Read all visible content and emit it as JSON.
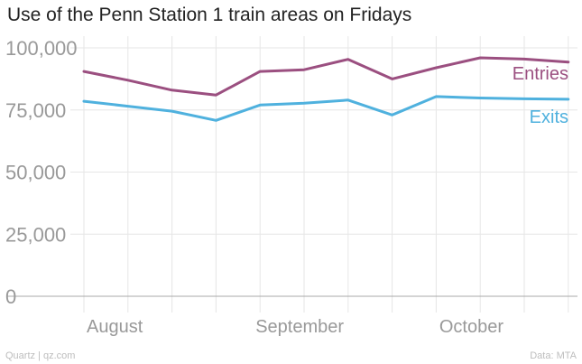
{
  "title": "Use of the Penn Station 1 train areas on Fridays",
  "footer": {
    "source": "Quartz | qz.com",
    "credit": "Data: MTA"
  },
  "colors": {
    "entries": "#9b4f80",
    "exits": "#4fb1de",
    "grid": "#e6e6e6",
    "axis_text": "#999999",
    "zero_line": "#a8a8a8"
  },
  "chart_data": {
    "type": "line",
    "title": "Use of the Penn Station 1 train areas on Fridays",
    "xlabel": "",
    "ylabel": "",
    "x_tick_labels": [
      "August",
      "September",
      "October"
    ],
    "y_ticks": [
      0,
      25000,
      50000,
      75000,
      100000
    ],
    "y_tick_labels": [
      "0",
      "25,000",
      "50,000",
      "75,000",
      "100,000"
    ],
    "ylim": [
      0,
      100000
    ],
    "grid": true,
    "series": [
      {
        "name": "Entries",
        "color": "#9b4f80",
        "values": [
          90500,
          87000,
          83000,
          81000,
          90500,
          91200,
          95400,
          87500,
          92000,
          96000,
          95500,
          94300
        ]
      },
      {
        "name": "Exits",
        "color": "#4fb1de",
        "values": [
          78500,
          76500,
          74500,
          70800,
          77000,
          77700,
          79000,
          73000,
          80400,
          79800,
          79500,
          79300
        ]
      }
    ]
  }
}
